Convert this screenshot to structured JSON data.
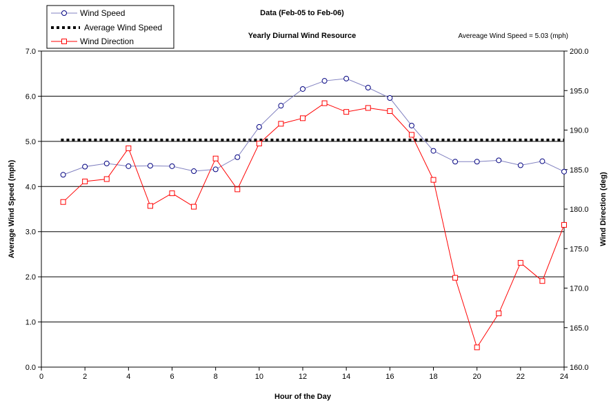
{
  "chart_data": {
    "type": "line",
    "title": "Data (Feb-05 to Feb-06)",
    "subtitle": "Yearly Diurnal Wind Resource",
    "annotation": "Avereage Wind Speed = 5.03 (mph)",
    "xlabel": "Hour of the Day",
    "ylabel": "Average Wind Speed (mph)",
    "y2label": "Wind Direction (deg)",
    "xlim": [
      0,
      24
    ],
    "ylim": [
      0.0,
      7.0
    ],
    "y2lim": [
      160.0,
      200.0
    ],
    "xticks": [
      "0",
      "2",
      "4",
      "6",
      "8",
      "10",
      "12",
      "14",
      "16",
      "18",
      "20",
      "22",
      "24"
    ],
    "yticks": [
      "0.0",
      "1.0",
      "2.0",
      "3.0",
      "4.0",
      "5.0",
      "6.0",
      "7.0"
    ],
    "y2ticks": [
      "160.0",
      "165.0",
      "170.0",
      "175.0",
      "180.0",
      "185.0",
      "190.0",
      "195.0",
      "200.0"
    ],
    "grid": "horizontal",
    "legend_position": "top-left",
    "x": [
      1,
      2,
      3,
      4,
      5,
      6,
      7,
      8,
      9,
      10,
      11,
      12,
      13,
      14,
      15,
      16,
      17,
      18,
      19,
      20,
      21,
      22,
      23,
      24
    ],
    "series": [
      {
        "name": "Wind Speed",
        "axis": "left",
        "color": "#8080c0",
        "marker_color": "#000080",
        "marker": "circle",
        "values": [
          4.26,
          4.44,
          4.51,
          4.45,
          4.46,
          4.45,
          4.34,
          4.38,
          4.65,
          5.32,
          5.79,
          6.16,
          6.34,
          6.39,
          6.19,
          5.96,
          5.35,
          4.79,
          4.55,
          4.55,
          4.58,
          4.47,
          4.56,
          4.33
        ]
      },
      {
        "name": "Average Wind Speed",
        "axis": "left",
        "color": "#000000",
        "style": "dashed",
        "value": 5.03
      },
      {
        "name": "Wind Direction",
        "axis": "right",
        "color": "#ff0000",
        "marker_color": "#ff0000",
        "marker": "square",
        "values": [
          180.9,
          183.5,
          183.8,
          187.7,
          180.4,
          182.0,
          180.3,
          186.4,
          182.5,
          188.3,
          190.8,
          191.5,
          193.4,
          192.3,
          192.8,
          192.4,
          189.4,
          183.7,
          171.3,
          162.5,
          166.8,
          173.2,
          170.9,
          178.0
        ]
      }
    ]
  }
}
